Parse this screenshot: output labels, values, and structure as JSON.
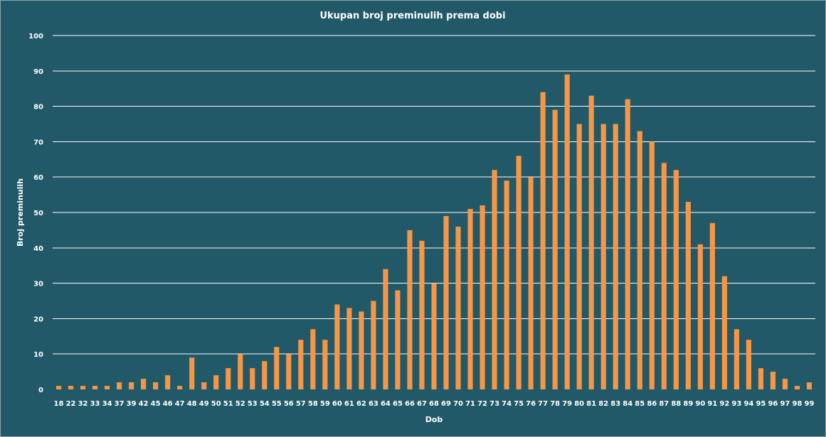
{
  "chart_data": {
    "type": "bar",
    "title": "Ukupan broj preminulih prema dobi",
    "xlabel": "Dob",
    "ylabel": "Broj preminulih",
    "ylim": [
      0,
      100
    ],
    "yticks": [
      0,
      10,
      20,
      30,
      40,
      50,
      60,
      70,
      80,
      90,
      100
    ],
    "grid": true,
    "legend": "none",
    "categories": [
      "18",
      "22",
      "32",
      "33",
      "34",
      "37",
      "39",
      "42",
      "45",
      "46",
      "47",
      "48",
      "49",
      "50",
      "51",
      "52",
      "53",
      "54",
      "55",
      "56",
      "57",
      "58",
      "59",
      "60",
      "61",
      "62",
      "63",
      "64",
      "65",
      "66",
      "67",
      "68",
      "69",
      "70",
      "71",
      "72",
      "73",
      "74",
      "75",
      "76",
      "77",
      "78",
      "79",
      "80",
      "81",
      "82",
      "83",
      "84",
      "85",
      "86",
      "87",
      "88",
      "89",
      "90",
      "91",
      "92",
      "93",
      "94",
      "95",
      "96",
      "97",
      "98",
      "99"
    ],
    "values": [
      1,
      1,
      1,
      1,
      1,
      2,
      2,
      3,
      2,
      4,
      1,
      9,
      2,
      4,
      6,
      10,
      6,
      8,
      12,
      10,
      14,
      17,
      14,
      24,
      23,
      22,
      25,
      34,
      28,
      45,
      42,
      30,
      49,
      46,
      51,
      52,
      62,
      59,
      66,
      60,
      84,
      79,
      89,
      75,
      83,
      75,
      75,
      82,
      73,
      70,
      64,
      62,
      53,
      41,
      47,
      32,
      17,
      14,
      6,
      5,
      3,
      1,
      2
    ],
    "colors": {
      "background": "#215968",
      "bar": "#f79646",
      "grid": "#ffffff",
      "text": "#ffffff"
    }
  }
}
